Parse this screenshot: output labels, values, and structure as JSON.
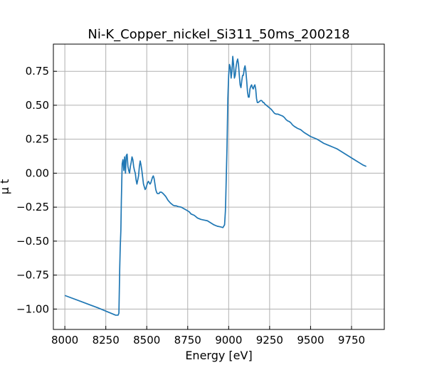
{
  "chart_data": {
    "type": "line",
    "title": "Ni-K_Copper_nickel_Si311_50ms_200218",
    "xlabel": "Energy [eV]",
    "ylabel": "μ t",
    "xlim": [
      7930,
      9950
    ],
    "ylim": [
      -1.15,
      0.95
    ],
    "xticks": [
      8000,
      8250,
      8500,
      8750,
      9000,
      9250,
      9500,
      9750
    ],
    "yticks": [
      -1.0,
      -0.75,
      -0.5,
      -0.25,
      0.0,
      0.25,
      0.5,
      0.75
    ],
    "xtick_labels": [
      "8000",
      "8250",
      "8500",
      "8750",
      "9000",
      "9250",
      "9500",
      "9750"
    ],
    "ytick_labels": [
      "−1.00",
      "−0.75",
      "−0.50",
      "−0.25",
      "0.00",
      "0.25",
      "0.50",
      "0.75"
    ],
    "grid": true,
    "series": [
      {
        "color": "#1f77b4",
        "x": [
          8000,
          8100,
          8200,
          8280,
          8310,
          8325,
          8330,
          8335,
          8338,
          8342,
          8345,
          8350,
          8355,
          8360,
          8365,
          8370,
          8375,
          8380,
          8385,
          8390,
          8395,
          8400,
          8405,
          8410,
          8415,
          8420,
          8425,
          8430,
          8435,
          8440,
          8445,
          8450,
          8455,
          8460,
          8465,
          8470,
          8475,
          8480,
          8485,
          8490,
          8495,
          8500,
          8505,
          8510,
          8515,
          8520,
          8525,
          8530,
          8535,
          8540,
          8545,
          8550,
          8555,
          8560,
          8565,
          8570,
          8575,
          8580,
          8590,
          8600,
          8615,
          8630,
          8645,
          8660,
          8670,
          8680,
          8690,
          8710,
          8740,
          8760,
          8770,
          8790,
          8810,
          8830,
          8850,
          8870,
          8890,
          8910,
          8930,
          8950,
          8965,
          8975,
          8980,
          8982,
          8985,
          8990,
          8995,
          9000,
          9005,
          9010,
          9015,
          9020,
          9025,
          9030,
          9035,
          9040,
          9045,
          9050,
          9055,
          9060,
          9065,
          9070,
          9075,
          9080,
          9085,
          9090,
          9095,
          9100,
          9105,
          9110,
          9115,
          9120,
          9125,
          9130,
          9135,
          9140,
          9145,
          9150,
          9155,
          9160,
          9165,
          9170,
          9175,
          9180,
          9185,
          9190,
          9195,
          9200,
          9205,
          9210,
          9215,
          9220,
          9230,
          9240,
          9250,
          9260,
          9270,
          9280,
          9290,
          9300,
          9310,
          9320,
          9330,
          9340,
          9350,
          9360,
          9370,
          9380,
          9390,
          9400,
          9420,
          9440,
          9460,
          9480,
          9500,
          9520,
          9540,
          9560,
          9580,
          9600,
          9620,
          9640,
          9660,
          9680,
          9700,
          9720,
          9740,
          9760,
          9780,
          9800,
          9820,
          9840
        ],
        "y": [
          -0.9,
          -0.945,
          -0.99,
          -1.03,
          -1.045,
          -1.045,
          -1.03,
          -0.7,
          -0.55,
          -0.42,
          -0.2,
          0.07,
          0.1,
          0.02,
          0.12,
          0.0,
          0.13,
          0.14,
          0.05,
          0.02,
          0.0,
          0.05,
          0.08,
          0.12,
          0.1,
          0.05,
          0.02,
          0.0,
          -0.05,
          -0.08,
          -0.05,
          -0.02,
          0.05,
          0.09,
          0.06,
          0.02,
          -0.03,
          -0.08,
          -0.1,
          -0.12,
          -0.11,
          -0.09,
          -0.07,
          -0.06,
          -0.07,
          -0.08,
          -0.07,
          -0.05,
          -0.03,
          -0.02,
          -0.04,
          -0.08,
          -0.12,
          -0.14,
          -0.15,
          -0.15,
          -0.15,
          -0.14,
          -0.14,
          -0.15,
          -0.17,
          -0.2,
          -0.22,
          -0.235,
          -0.24,
          -0.24,
          -0.245,
          -0.25,
          -0.27,
          -0.285,
          -0.3,
          -0.31,
          -0.33,
          -0.34,
          -0.345,
          -0.35,
          -0.365,
          -0.38,
          -0.39,
          -0.395,
          -0.4,
          -0.38,
          -0.28,
          -0.2,
          -0.05,
          0.2,
          0.55,
          0.72,
          0.8,
          0.78,
          0.7,
          0.75,
          0.86,
          0.8,
          0.7,
          0.72,
          0.78,
          0.82,
          0.84,
          0.8,
          0.72,
          0.65,
          0.63,
          0.68,
          0.72,
          0.72,
          0.77,
          0.79,
          0.75,
          0.68,
          0.6,
          0.56,
          0.56,
          0.62,
          0.64,
          0.65,
          0.63,
          0.62,
          0.64,
          0.65,
          0.62,
          0.55,
          0.52,
          0.52,
          0.525,
          0.53,
          0.535,
          0.535,
          0.53,
          0.52,
          0.52,
          0.51,
          0.5,
          0.49,
          0.48,
          0.47,
          0.455,
          0.44,
          0.435,
          0.435,
          0.43,
          0.425,
          0.42,
          0.41,
          0.395,
          0.385,
          0.38,
          0.37,
          0.355,
          0.345,
          0.33,
          0.32,
          0.3,
          0.285,
          0.27,
          0.26,
          0.25,
          0.235,
          0.22,
          0.21,
          0.2,
          0.19,
          0.18,
          0.165,
          0.15,
          0.135,
          0.12,
          0.105,
          0.09,
          0.075,
          0.06,
          0.05
        ]
      }
    ]
  }
}
